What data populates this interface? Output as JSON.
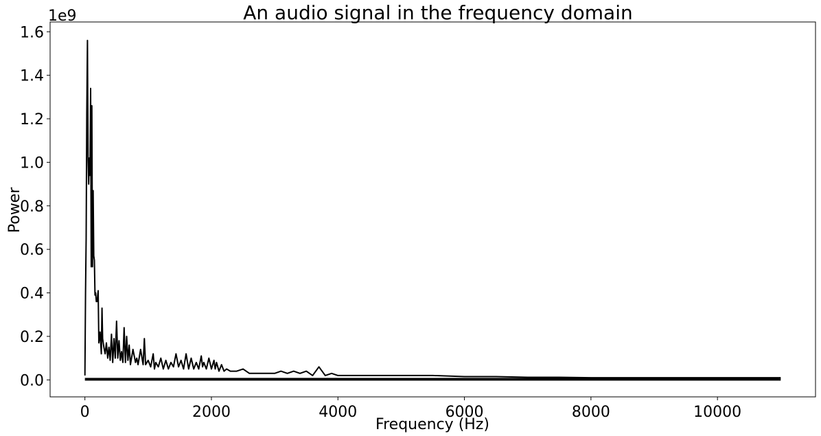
{
  "chart_data": {
    "type": "line",
    "title": "An audio signal in the frequency domain",
    "xlabel": "Frequency (Hz)",
    "ylabel": "Power",
    "y_offset_label": "1e9",
    "y_scale_factor": 1000000000,
    "xlim": [
      -550,
      11550
    ],
    "ylim": [
      -0.078,
      1.645
    ],
    "x_ticks": [
      0,
      2000,
      4000,
      6000,
      8000,
      10000
    ],
    "x_tick_labels": [
      "0",
      "2000",
      "4000",
      "6000",
      "8000",
      "10000"
    ],
    "y_ticks": [
      0.0,
      0.2,
      0.4,
      0.6,
      0.8,
      1.0,
      1.2,
      1.4,
      1.6
    ],
    "y_tick_labels": [
      "0.0",
      "0.2",
      "0.4",
      "0.6",
      "0.8",
      "1.0",
      "1.2",
      "1.4",
      "1.6"
    ],
    "grid": false,
    "line_color": "#000000",
    "series": [
      {
        "x": [
          0,
          10,
          20,
          30,
          40,
          50,
          60,
          70,
          80,
          90,
          100,
          110,
          120,
          130,
          140,
          150,
          160,
          170,
          180,
          190,
          200,
          210,
          220,
          240,
          260,
          270,
          280,
          300,
          320,
          340,
          360,
          380,
          400,
          420,
          440,
          460,
          480,
          500,
          520,
          540,
          560,
          580,
          600,
          620,
          640,
          660,
          680,
          700,
          720,
          760,
          800,
          820,
          840,
          880,
          920,
          940,
          960,
          1000,
          1040,
          1080,
          1100,
          1120,
          1160,
          1200,
          1240,
          1280,
          1320,
          1360,
          1400,
          1440,
          1480,
          1520,
          1560,
          1600,
          1640,
          1680,
          1720,
          1760,
          1800,
          1840,
          1860,
          1880,
          1920,
          1960,
          2000,
          2040,
          2060,
          2080,
          2120,
          2160,
          2200,
          2240,
          2300,
          2400,
          2500,
          2600,
          2700,
          2800,
          2900,
          3000,
          3100,
          3200,
          3300,
          3400,
          3500,
          3600,
          3700,
          3800,
          3900,
          4000,
          4200,
          4400,
          4600,
          4800,
          5000,
          5500,
          6000,
          6500,
          7000,
          7500,
          8000,
          8500,
          9000,
          9500,
          10000,
          10500,
          11000
        ],
        "values": [
          0.02,
          0.4,
          0.65,
          1.22,
          1.56,
          1.01,
          0.9,
          1.02,
          0.94,
          1.34,
          0.52,
          1.26,
          0.52,
          0.87,
          0.57,
          0.55,
          0.39,
          0.4,
          0.36,
          0.36,
          0.38,
          0.41,
          0.17,
          0.22,
          0.12,
          0.33,
          0.19,
          0.15,
          0.12,
          0.17,
          0.1,
          0.15,
          0.09,
          0.21,
          0.08,
          0.19,
          0.1,
          0.27,
          0.1,
          0.18,
          0.09,
          0.13,
          0.08,
          0.24,
          0.08,
          0.2,
          0.09,
          0.16,
          0.07,
          0.14,
          0.08,
          0.1,
          0.07,
          0.14,
          0.07,
          0.19,
          0.07,
          0.09,
          0.06,
          0.12,
          0.05,
          0.08,
          0.06,
          0.1,
          0.05,
          0.09,
          0.05,
          0.08,
          0.06,
          0.12,
          0.06,
          0.09,
          0.05,
          0.12,
          0.05,
          0.1,
          0.05,
          0.08,
          0.05,
          0.11,
          0.06,
          0.08,
          0.05,
          0.1,
          0.05,
          0.09,
          0.05,
          0.08,
          0.04,
          0.07,
          0.04,
          0.05,
          0.04,
          0.04,
          0.05,
          0.03,
          0.03,
          0.03,
          0.03,
          0.03,
          0.04,
          0.03,
          0.04,
          0.03,
          0.04,
          0.02,
          0.06,
          0.02,
          0.03,
          0.02,
          0.02,
          0.02,
          0.02,
          0.02,
          0.02,
          0.02,
          0.015,
          0.015,
          0.012,
          0.012,
          0.01,
          0.01,
          0.01,
          0.01,
          0.01,
          0.01,
          0.01
        ]
      }
    ]
  }
}
